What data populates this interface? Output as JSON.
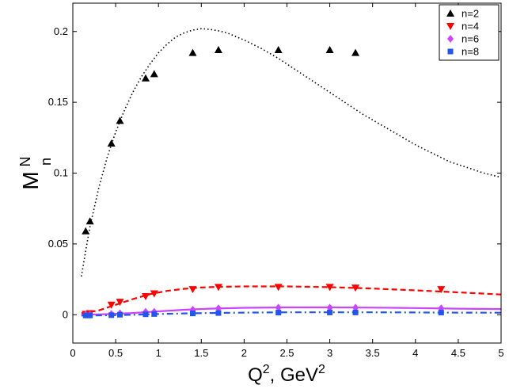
{
  "chart_data": {
    "type": "scatter",
    "xlabel": {
      "base": "Q",
      "sup1": "2",
      "mid": ", GeV",
      "sup2": "2"
    },
    "ylabel": {
      "base": "M",
      "sub": "n",
      "sup": "N"
    },
    "xlim": [
      0,
      5
    ],
    "ylim": [
      -0.02,
      0.22
    ],
    "xticks": [
      0,
      0.5,
      1,
      1.5,
      2,
      2.5,
      3,
      3.5,
      4,
      4.5,
      5
    ],
    "xtick_labels": [
      "0",
      "0.5",
      "1",
      "1.5",
      "2",
      "2.5",
      "3",
      "3.5",
      "4",
      "4.5",
      "5"
    ],
    "yticks": [
      0,
      0.05,
      0.1,
      0.15,
      0.2
    ],
    "ytick_labels": [
      "0",
      "0.05",
      "0.1",
      "0.15",
      "0.2"
    ],
    "grid": false,
    "legend_position": "top-right",
    "series": [
      {
        "name": "n=2",
        "marker": "triangle-up",
        "color": "#000000",
        "points": [
          [
            0.15,
            0.059
          ],
          [
            0.2,
            0.066
          ],
          [
            0.45,
            0.121
          ],
          [
            0.55,
            0.137
          ],
          [
            0.85,
            0.167
          ],
          [
            0.95,
            0.17
          ],
          [
            1.4,
            0.185
          ],
          [
            1.7,
            0.187
          ],
          [
            2.4,
            0.187
          ],
          [
            3.0,
            0.187
          ],
          [
            3.3,
            0.185
          ]
        ],
        "curve_style": "dotted",
        "curve": [
          [
            0.1,
            0.027
          ],
          [
            0.15,
            0.045
          ],
          [
            0.2,
            0.062
          ],
          [
            0.3,
            0.089
          ],
          [
            0.4,
            0.111
          ],
          [
            0.5,
            0.129
          ],
          [
            0.6,
            0.144
          ],
          [
            0.7,
            0.157
          ],
          [
            0.8,
            0.168
          ],
          [
            0.9,
            0.177
          ],
          [
            1.0,
            0.185
          ],
          [
            1.1,
            0.191
          ],
          [
            1.2,
            0.196
          ],
          [
            1.3,
            0.199
          ],
          [
            1.4,
            0.201
          ],
          [
            1.5,
            0.202
          ],
          [
            1.6,
            0.2015
          ],
          [
            1.7,
            0.2005
          ],
          [
            1.8,
            0.199
          ],
          [
            2.0,
            0.194
          ],
          [
            2.2,
            0.188
          ],
          [
            2.4,
            0.181
          ],
          [
            2.6,
            0.173
          ],
          [
            2.8,
            0.165
          ],
          [
            3.0,
            0.157
          ],
          [
            3.2,
            0.149
          ],
          [
            3.4,
            0.141
          ],
          [
            3.6,
            0.134
          ],
          [
            3.8,
            0.127
          ],
          [
            4.0,
            0.12
          ],
          [
            4.2,
            0.114
          ],
          [
            4.4,
            0.108
          ],
          [
            4.6,
            0.104
          ],
          [
            4.8,
            0.1
          ],
          [
            5.0,
            0.097
          ]
        ]
      },
      {
        "name": "n=4",
        "marker": "triangle-down",
        "color": "#ff0000",
        "points": [
          [
            0.15,
            0.0005
          ],
          [
            0.2,
            0.001
          ],
          [
            0.45,
            0.007
          ],
          [
            0.55,
            0.009
          ],
          [
            0.85,
            0.013
          ],
          [
            0.95,
            0.015
          ],
          [
            1.4,
            0.018
          ],
          [
            1.7,
            0.0195
          ],
          [
            2.4,
            0.0195
          ],
          [
            3.0,
            0.0195
          ],
          [
            3.3,
            0.019
          ],
          [
            4.3,
            0.018
          ]
        ],
        "curve_style": "dashed",
        "curve": [
          [
            0.1,
            0.001
          ],
          [
            0.3,
            0.003
          ],
          [
            0.5,
            0.007
          ],
          [
            0.7,
            0.011
          ],
          [
            0.9,
            0.0145
          ],
          [
            1.1,
            0.0168
          ],
          [
            1.3,
            0.0183
          ],
          [
            1.5,
            0.0192
          ],
          [
            1.7,
            0.0197
          ],
          [
            2.0,
            0.02
          ],
          [
            2.5,
            0.02
          ],
          [
            3.0,
            0.0195
          ],
          [
            3.5,
            0.0185
          ],
          [
            4.0,
            0.0172
          ],
          [
            4.5,
            0.0158
          ],
          [
            5.0,
            0.0143
          ]
        ]
      },
      {
        "name": "n=6",
        "marker": "diamond",
        "color": "#cc44ff",
        "points": [
          [
            0.15,
            0.0
          ],
          [
            0.2,
            0.0
          ],
          [
            0.45,
            0.0005
          ],
          [
            0.55,
            0.001
          ],
          [
            0.85,
            0.002
          ],
          [
            0.95,
            0.002
          ],
          [
            1.4,
            0.0035
          ],
          [
            1.7,
            0.0045
          ],
          [
            2.4,
            0.005
          ],
          [
            3.0,
            0.005
          ],
          [
            3.3,
            0.005
          ],
          [
            4.3,
            0.0045
          ]
        ],
        "curve_style": "solid",
        "curve": [
          [
            0.1,
            0.0
          ],
          [
            0.4,
            0.0004
          ],
          [
            0.7,
            0.0012
          ],
          [
            1.0,
            0.0024
          ],
          [
            1.3,
            0.0035
          ],
          [
            1.6,
            0.0043
          ],
          [
            2.0,
            0.0049
          ],
          [
            2.5,
            0.0052
          ],
          [
            3.0,
            0.0052
          ],
          [
            3.5,
            0.005
          ],
          [
            4.0,
            0.0047
          ],
          [
            4.5,
            0.0043
          ],
          [
            5.0,
            0.004
          ]
        ]
      },
      {
        "name": "n=8",
        "marker": "square",
        "color": "#2255ee",
        "points": [
          [
            0.15,
            -0.0005
          ],
          [
            0.2,
            -0.0005
          ],
          [
            0.45,
            -0.0003
          ],
          [
            0.55,
            0.0
          ],
          [
            0.85,
            0.0003
          ],
          [
            0.95,
            0.0005
          ],
          [
            1.4,
            0.0009
          ],
          [
            1.7,
            0.0012
          ],
          [
            2.4,
            0.0015
          ],
          [
            3.0,
            0.0016
          ],
          [
            3.3,
            0.0016
          ],
          [
            4.3,
            0.0015
          ]
        ],
        "curve_style": "dashdot",
        "curve": [
          [
            0.1,
            -0.0006
          ],
          [
            0.4,
            -0.0004
          ],
          [
            0.7,
            0.0
          ],
          [
            1.0,
            0.0005
          ],
          [
            1.3,
            0.0009
          ],
          [
            1.6,
            0.0012
          ],
          [
            2.0,
            0.0015
          ],
          [
            2.5,
            0.0017
          ],
          [
            3.0,
            0.0017
          ],
          [
            3.5,
            0.0017
          ],
          [
            4.0,
            0.0016
          ],
          [
            4.5,
            0.0015
          ],
          [
            5.0,
            0.0014
          ]
        ]
      }
    ]
  }
}
